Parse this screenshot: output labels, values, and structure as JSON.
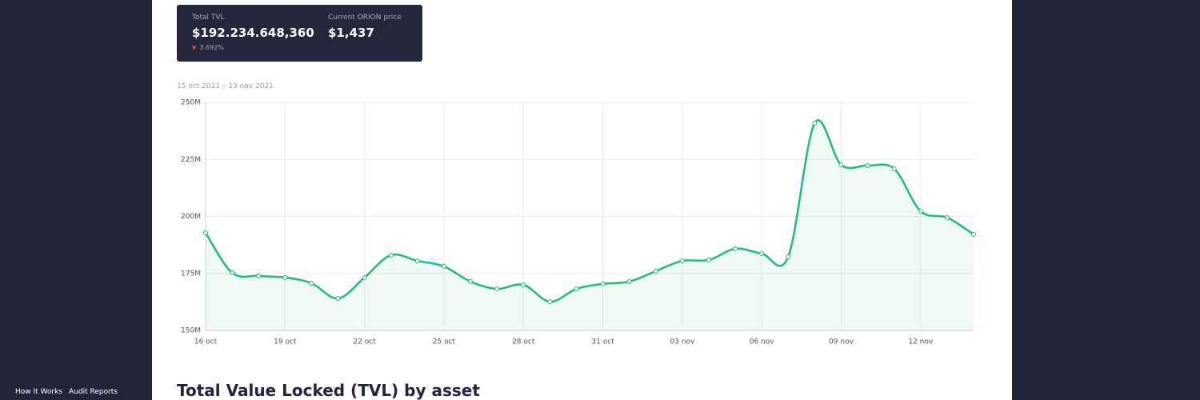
{
  "header": {
    "tvl_label": "Total TVL",
    "tvl_value": "$192.234.648,360",
    "tvl_change": "3.692%",
    "price_label": "Current ORION price",
    "price_value": "$1,437"
  },
  "date_range": "15 oct 2021 – 13 nov 2021",
  "section_title": "Total Value Locked (TVL) by asset",
  "footer_links": [
    "How It Works",
    "Audit Reports"
  ],
  "chart_data": {
    "type": "line",
    "categories": [
      "16 oct",
      null,
      null,
      "19 oct",
      null,
      null,
      "22 oct",
      null,
      null,
      "25 oct",
      null,
      null,
      "28 oct",
      null,
      null,
      "31 oct",
      null,
      null,
      "03 nov",
      null,
      null,
      "06 nov",
      null,
      null,
      "09 nov",
      null,
      null,
      "12 nov",
      null,
      null
    ],
    "series": [
      {
        "name": "TVL",
        "color": "#1dbd78",
        "values": [
          192.8,
          175.3,
          173.9,
          173.2,
          170.7,
          164.0,
          173.2,
          183.0,
          180.5,
          178.1,
          171.4,
          168.2,
          170.0,
          162.6,
          168.2,
          170.4,
          171.4,
          176.0,
          180.5,
          180.9,
          185.8,
          183.7,
          182.3,
          240.9,
          222.6,
          222.3,
          220.9,
          202.3,
          199.5,
          192.1
        ]
      }
    ],
    "ylim": [
      150,
      250
    ],
    "yticks": [
      {
        "value": 150,
        "label": "150M"
      },
      {
        "value": 175,
        "label": "175M"
      },
      {
        "value": 200,
        "label": "200M"
      },
      {
        "value": 225,
        "label": "225M"
      },
      {
        "value": 250,
        "label": "250M"
      }
    ],
    "grid": true
  }
}
